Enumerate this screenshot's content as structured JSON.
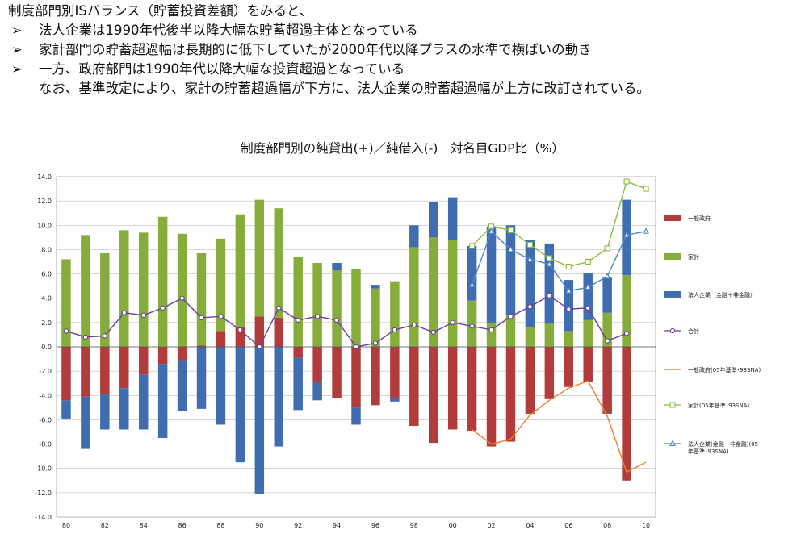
{
  "intro": {
    "lead": "制度部門別ISバランス（貯蓄投資差額）をみると、",
    "bullet_glyph": "➢",
    "bullets": [
      "法人企業は1990年代後半以降大幅な貯蓄超過主体となっている",
      "家計部門の貯蓄超過幅は長期的に低下していたが2000年代以降プラスの水準で横ばいの動き",
      "一方、政府部門は1990年代以降大幅な投資超過となっている"
    ],
    "note": "なお、基準改定により、家計の貯蓄超過幅が下方に、法人企業の貯蓄超過幅が上方に改訂されている。"
  },
  "chart_data": {
    "type": "bar",
    "title": "制度部門別の純貸出(+)／純借入(-)　対名目GDP比（%）",
    "ylim": [
      -14,
      14
    ],
    "y_ticks": [
      "14.0",
      "12.0",
      "10.0",
      "8.0",
      "6.0",
      "4.0",
      "2.0",
      "0.0",
      "-2.0",
      "-4.0",
      "-6.0",
      "-8.0",
      "-10.0",
      "-12.0",
      "-14.0"
    ],
    "x_tick_labels": [
      "80",
      "82",
      "84",
      "86",
      "88",
      "90",
      "92",
      "94",
      "96",
      "98",
      "00",
      "02",
      "04",
      "06",
      "08",
      "10"
    ],
    "years": [
      1980,
      1981,
      1982,
      1983,
      1984,
      1985,
      1986,
      1987,
      1988,
      1989,
      1990,
      1991,
      1992,
      1993,
      1994,
      1995,
      1996,
      1997,
      1998,
      1999,
      2000,
      2001,
      2002,
      2003,
      2004,
      2005,
      2006,
      2007,
      2008,
      2009
    ],
    "colors": {
      "government": "#b23c3c",
      "household": "#86ad3c",
      "corporate": "#3f6db0",
      "total": "#6b3f9a",
      "gov05": "#ee7d31",
      "hh05": "#8dbb3f",
      "corp05": "#4f86c6"
    },
    "series": [
      {
        "key": "government",
        "name": "一般政府",
        "kind": "bar",
        "values": [
          -4.4,
          -4.1,
          -3.9,
          -3.4,
          -2.3,
          -1.4,
          -1.1,
          0.1,
          1.3,
          1.6,
          2.5,
          2.4,
          -0.9,
          -2.9,
          -4.2,
          -5.0,
          -4.8,
          -4.2,
          -6.5,
          -7.9,
          -6.8,
          -6.9,
          -8.2,
          -7.8,
          -5.5,
          -4.3,
          -3.3,
          -2.9,
          -5.5,
          -11.0
        ]
      },
      {
        "key": "household",
        "name": "家計",
        "kind": "bar",
        "values": [
          7.2,
          9.2,
          7.7,
          9.6,
          9.4,
          10.7,
          9.3,
          7.6,
          7.6,
          9.3,
          9.6,
          9.0,
          7.4,
          6.9,
          6.3,
          6.4,
          4.8,
          5.4,
          8.2,
          9.0,
          8.8,
          3.8,
          2.0,
          2.6,
          1.6,
          1.9,
          1.3,
          2.2,
          2.8,
          5.9
        ]
      },
      {
        "key": "corporate",
        "name": "法人企業（金融＋非金融）",
        "kind": "bar",
        "values": [
          -1.5,
          -4.3,
          -2.9,
          -3.4,
          -4.5,
          -6.1,
          -4.2,
          -5.1,
          -6.4,
          -9.5,
          -12.1,
          -8.2,
          -4.3,
          -1.5,
          0.6,
          -1.4,
          0.3,
          -0.3,
          1.8,
          2.9,
          3.5,
          4.5,
          7.9,
          7.4,
          7.2,
          6.6,
          4.2,
          3.9,
          2.9,
          6.2
        ]
      },
      {
        "key": "total",
        "name": "合計",
        "kind": "line",
        "marker": "circle",
        "values": [
          1.3,
          0.8,
          0.9,
          2.8,
          2.6,
          3.2,
          4.0,
          2.4,
          2.5,
          1.4,
          0.0,
          3.2,
          2.2,
          2.5,
          2.2,
          0.0,
          0.3,
          1.4,
          1.8,
          1.2,
          2.0,
          1.7,
          1.4,
          2.5,
          3.3,
          4.2,
          3.1,
          3.2,
          0.5,
          1.1
        ]
      },
      {
        "key": "gov05",
        "name": "一般政府(05年基準･93SNA)",
        "kind": "line",
        "marker": "none",
        "years": [
          2001,
          2002,
          2003,
          2004,
          2005,
          2006,
          2007,
          2008,
          2009,
          2010
        ],
        "values": [
          -6.8,
          -8.0,
          -7.6,
          -5.6,
          -4.4,
          -3.4,
          -2.8,
          -5.7,
          -10.3,
          -9.5
        ]
      },
      {
        "key": "hh05",
        "name": "家計(05年基準･93SNA)",
        "kind": "line",
        "marker": "square",
        "years": [
          2001,
          2002,
          2003,
          2004,
          2005,
          2006,
          2007,
          2008,
          2009,
          2010
        ],
        "values": [
          8.3,
          9.9,
          9.6,
          8.4,
          7.3,
          6.6,
          7.0,
          8.1,
          13.6,
          13.0
        ]
      },
      {
        "key": "corp05",
        "name": "法人企業(金融＋非金融)(05年基準･93SNA)",
        "kind": "line",
        "marker": "triangle",
        "years": [
          2001,
          2002,
          2003,
          2004,
          2005,
          2006,
          2007,
          2008,
          2009,
          2010
        ],
        "values": [
          5.1,
          9.5,
          8.0,
          7.2,
          6.8,
          4.6,
          4.9,
          5.8,
          9.2,
          9.5
        ]
      }
    ],
    "legend": [
      {
        "key": "government",
        "label": "一般政府",
        "style": "bar"
      },
      {
        "key": "household",
        "label": "家計",
        "style": "bar"
      },
      {
        "key": "corporate",
        "label": "法人企業（金融＋非金融）",
        "style": "bar"
      },
      {
        "key": "total",
        "label": "合計",
        "style": "line-circle"
      },
      {
        "key": "gov05",
        "label": "一般政府(05年基準･93SNA)",
        "style": "line"
      },
      {
        "key": "hh05",
        "label": "家計(05年基準･93SNA)",
        "style": "line-square"
      },
      {
        "key": "corp05",
        "label": "法人企業(金融＋非金融)(05",
        "label2": "年基準･93SNA)",
        "style": "line-triangle"
      }
    ],
    "legend_position": "right",
    "grid": true
  }
}
